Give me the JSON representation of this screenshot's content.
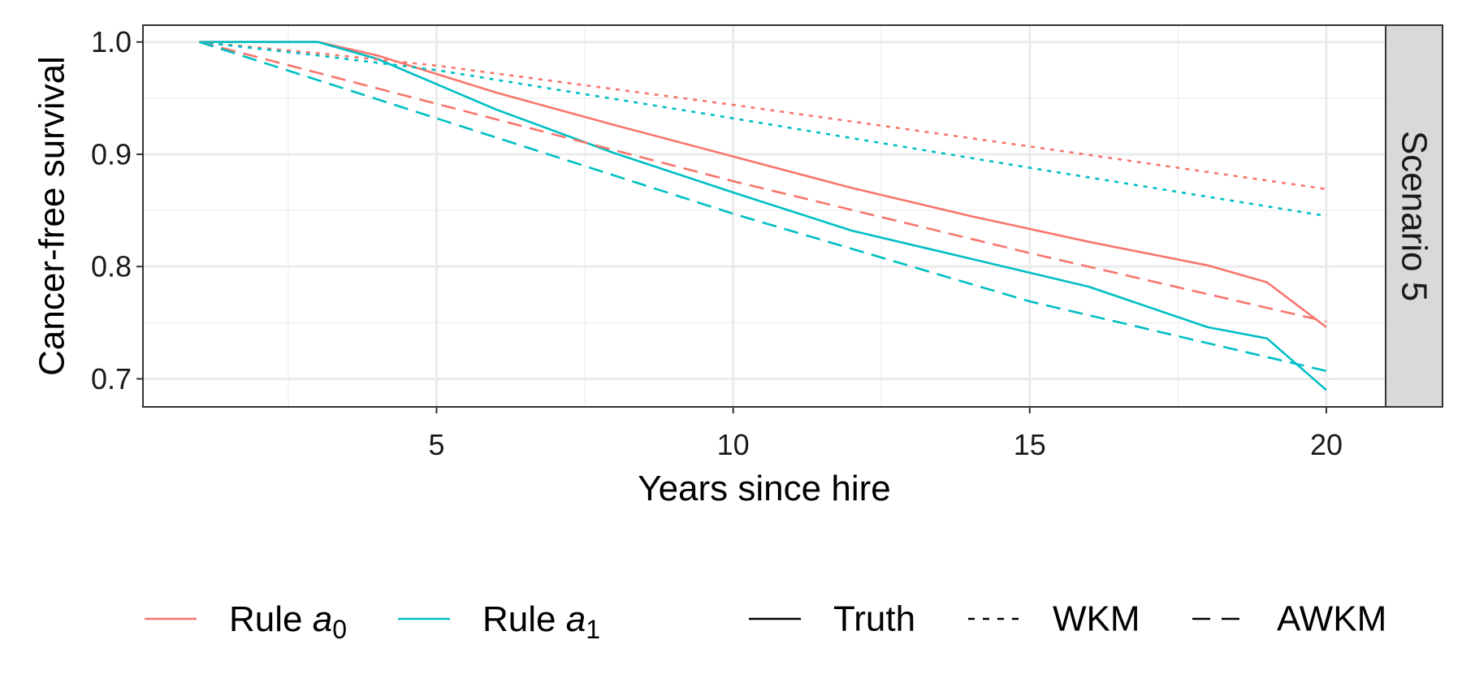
{
  "chart_data": {
    "type": "line",
    "xlabel": "Years since hire",
    "ylabel": "Cancer-free survival",
    "facet_label": "Scenario 5",
    "xlim": [
      0.05,
      21
    ],
    "ylim": [
      0.675,
      1.015
    ],
    "x_ticks": [
      5,
      10,
      15,
      20
    ],
    "x_tick_labels": [
      "5",
      "10",
      "15",
      "20"
    ],
    "y_ticks": [
      0.7,
      0.8,
      0.9,
      1.0
    ],
    "y_tick_labels": [
      "0.7",
      "0.8",
      "0.9",
      "1.0"
    ],
    "grid": true,
    "legend_position": "bottom",
    "colors": {
      "rule_a0": "#F8766D",
      "rule_a1": "#00BFC4"
    },
    "legend_color": [
      {
        "key": "rule_a0",
        "base": "Rule ",
        "var": "a",
        "sub": "0"
      },
      {
        "key": "rule_a1",
        "base": "Rule ",
        "var": "a",
        "sub": "1"
      }
    ],
    "legend_linetype": [
      {
        "key": "solid",
        "label": "Truth"
      },
      {
        "key": "dotted",
        "label": "WKM"
      },
      {
        "key": "dashed",
        "label": "AWKM"
      }
    ],
    "series": [
      {
        "rule": "rule_a0",
        "method": "solid",
        "x": [
          1,
          3,
          4,
          6,
          8,
          10,
          12,
          14,
          16,
          18,
          19,
          20
        ],
        "y": [
          1.0,
          1.0,
          0.988,
          0.955,
          0.926,
          0.898,
          0.87,
          0.845,
          0.822,
          0.801,
          0.786,
          0.746
        ]
      },
      {
        "rule": "rule_a1",
        "method": "solid",
        "x": [
          1,
          3,
          4,
          6,
          8,
          10,
          12,
          14,
          16,
          18,
          19,
          20
        ],
        "y": [
          1.0,
          1.0,
          0.985,
          0.94,
          0.901,
          0.866,
          0.832,
          0.807,
          0.782,
          0.746,
          0.736,
          0.69
        ]
      },
      {
        "rule": "rule_a0",
        "method": "dotted",
        "x": [
          1,
          3,
          5,
          10,
          15,
          20
        ],
        "y": [
          1.0,
          0.99,
          0.979,
          0.944,
          0.907,
          0.869
        ]
      },
      {
        "rule": "rule_a1",
        "method": "dotted",
        "x": [
          1,
          3,
          5,
          10,
          15,
          20
        ],
        "y": [
          1.0,
          0.988,
          0.975,
          0.932,
          0.888,
          0.845
        ]
      },
      {
        "rule": "rule_a0",
        "method": "dashed",
        "x": [
          1,
          5,
          10,
          15,
          20
        ],
        "y": [
          1.0,
          0.945,
          0.876,
          0.812,
          0.751
        ]
      },
      {
        "rule": "rule_a1",
        "method": "dashed",
        "x": [
          1,
          5,
          10,
          15,
          20
        ],
        "y": [
          1.0,
          0.932,
          0.847,
          0.769,
          0.707
        ]
      }
    ]
  }
}
